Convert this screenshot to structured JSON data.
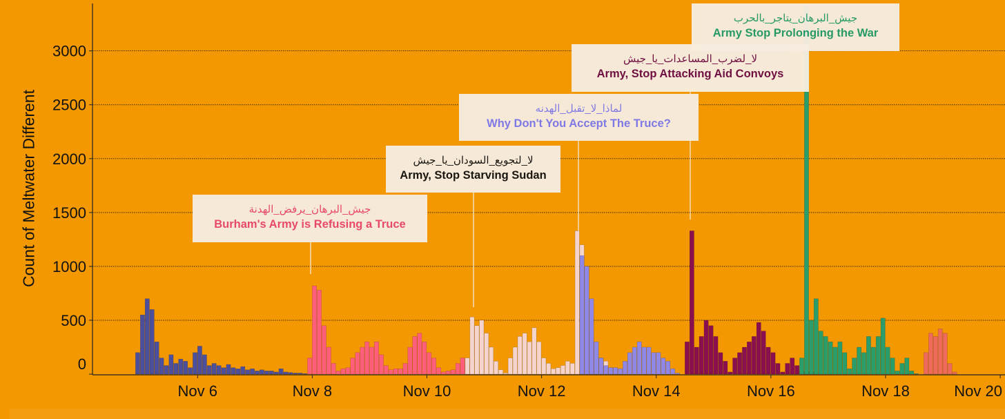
{
  "chart_data": {
    "type": "bar",
    "title": "",
    "xlabel": "",
    "ylabel": "Count of Meltwater Different",
    "ylim": [
      0,
      3440
    ],
    "xlim": [
      "Nov 4 04:00",
      "Nov 20 02:00"
    ],
    "bin": "2h",
    "grid": "horizontal dotted",
    "background": "#f39800",
    "yticks": [
      0,
      500,
      1000,
      1500,
      2000,
      2500,
      3000
    ],
    "xticks": [
      "Nov 6",
      "Nov 8",
      "Nov 10",
      "Nov 12",
      "Nov 14",
      "Nov 16",
      "Nov 18",
      "Nov 20"
    ],
    "series": [
      {
        "color": "#4b4f9c",
        "start": "Nov 4 22:00",
        "values": [
          200,
          550,
          700,
          600,
          300,
          150,
          80,
          180,
          100,
          140,
          120,
          60,
          200,
          260,
          180,
          80,
          100,
          80,
          60,
          90,
          60,
          50,
          70,
          40,
          50,
          30,
          40,
          30,
          30,
          20,
          50,
          20,
          15,
          10,
          10,
          5
        ]
      },
      {
        "color": "#ff5f7a",
        "start": "Nov 7 22:00",
        "values": [
          150,
          820,
          780,
          450,
          250,
          100,
          30,
          50,
          60,
          150,
          200,
          250,
          300,
          250,
          300,
          180,
          80,
          40,
          50,
          50,
          100,
          250,
          350,
          380,
          300,
          200,
          150,
          60,
          20,
          30,
          40,
          100,
          150,
          100
        ]
      },
      {
        "color": "#f4d4cc",
        "start": "Nov 10 16:00",
        "values": [
          150,
          530,
          450,
          500,
          380,
          250,
          120,
          40,
          10,
          150,
          250,
          350,
          380,
          300,
          430,
          300,
          150,
          100,
          50,
          60,
          80,
          120,
          100,
          1330,
          1200,
          1000,
          400,
          250,
          150,
          120,
          60,
          60,
          50
        ]
      },
      {
        "color": "#8f88e6",
        "start": "Nov 12 16:00",
        "values": [
          1100,
          1000,
          700,
          300,
          150,
          80,
          60,
          60,
          50,
          120,
          200,
          250,
          300,
          250,
          250,
          200,
          200,
          150,
          120,
          50,
          10
        ]
      },
      {
        "color": "#8a0f4f",
        "start": "Nov 14 12:00",
        "values": [
          300,
          1330,
          250,
          350,
          500,
          450,
          350,
          200,
          120,
          20,
          150,
          200,
          250,
          300,
          350,
          480,
          400,
          250,
          200,
          100,
          20,
          100,
          150,
          80,
          30,
          20,
          30,
          20
        ]
      },
      {
        "color": "#2a9d6a",
        "start": "Nov 16 12:00",
        "values": [
          150,
          3400,
          500,
          700,
          400,
          350,
          300,
          250,
          300,
          200,
          50,
          150,
          250,
          200,
          350,
          250,
          350,
          520,
          250,
          150,
          30,
          100,
          150,
          30,
          5
        ]
      },
      {
        "color": "#ee6a5a",
        "start": "Nov 18 16:00",
        "values": [
          200,
          380,
          350,
          420,
          380,
          100,
          20
        ]
      }
    ],
    "annotations": [
      {
        "arabic": "جيش_البرهان_يرفض_الهدنة",
        "english": "Burham's Army is Refusing a Truce",
        "color": "#e8466e"
      },
      {
        "arabic": "لا_لتجويع_السودان_يا_جيش",
        "english": "Army, Stop Starving Sudan",
        "color": "#111111"
      },
      {
        "arabic": "لماذا_لا_تقبل_الهدنه",
        "english": "Why Don't You Accept The Truce?",
        "color": "#7b78f0"
      },
      {
        "arabic": "لا_لضرب_المساعدات_يا_جيش",
        "english": "Army, Stop Attacking Aid Convoys",
        "color": "#6a0a45"
      },
      {
        "arabic": "جيش_البرهان_يتاجر_بالحرب",
        "english": "Army Stop Prolonging the War",
        "color": "#1f9a6a"
      }
    ]
  }
}
